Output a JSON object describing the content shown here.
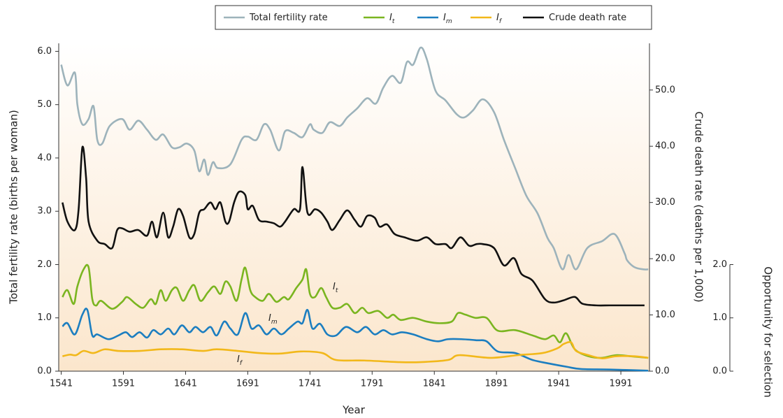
{
  "chart_data": {
    "type": "line",
    "xlabel": "Year",
    "ylabel": "Total fertility rate (births per woman)",
    "y2label": "Crude death rate (deaths per 1,000)",
    "y3label": "Opportunity for selection",
    "xlim": [
      1539,
      2014
    ],
    "xticks": [
      1541,
      1591,
      1641,
      1691,
      1741,
      1791,
      1841,
      1891,
      1941,
      1991
    ],
    "ylim": [
      0,
      6.15
    ],
    "yticks": [
      {
        "value": 0,
        "label": "0.0"
      },
      {
        "value": 1,
        "label": "1.0"
      },
      {
        "value": 2,
        "label": "2.0"
      },
      {
        "value": 3,
        "label": "3.0"
      },
      {
        "value": 4,
        "label": "4.0"
      },
      {
        "value": 5,
        "label": "5.0"
      },
      {
        "value": 6,
        "label": "6.0"
      }
    ],
    "y2lim": [
      0,
      58.3
    ],
    "y2ticks": [
      {
        "value": 0,
        "label": "0.0"
      },
      {
        "value": 10,
        "label": "10.0"
      },
      {
        "value": 20,
        "label": "20.0"
      },
      {
        "value": 30,
        "label": "30.0"
      },
      {
        "value": 40,
        "label": "40.0"
      },
      {
        "value": 50,
        "label": "50.0"
      }
    ],
    "y3lim": [
      0,
      2
    ],
    "y3ticks": [
      {
        "value": 0,
        "label": "0.0"
      },
      {
        "value": 1,
        "label": "1.0"
      },
      {
        "value": 2,
        "label": "2.0"
      }
    ],
    "series": [
      {
        "name": "Total fertility rate",
        "color": "#9db3bb",
        "x": [
          1541,
          1546,
          1552,
          1554,
          1558,
          1563,
          1567,
          1570,
          1574,
          1580,
          1590,
          1596,
          1603,
          1610,
          1617,
          1623,
          1630,
          1636,
          1642,
          1648,
          1652,
          1656,
          1659,
          1663,
          1667,
          1677,
          1686,
          1691,
          1698,
          1704,
          1709,
          1716,
          1721,
          1728,
          1735,
          1741,
          1744,
          1751,
          1757,
          1765,
          1771,
          1779,
          1787,
          1794,
          1800,
          1807,
          1814,
          1819,
          1824,
          1830,
          1835,
          1842,
          1850,
          1859,
          1865,
          1872,
          1880,
          1889,
          1897,
          1906,
          1915,
          1924,
          1932,
          1937,
          1944,
          1949,
          1955,
          1964,
          1976,
          1986,
          1994,
          1996,
          2002,
          2009,
          2013
        ],
        "values": [
          5.75,
          5.36,
          5.6,
          5.0,
          4.63,
          4.73,
          4.97,
          4.34,
          4.27,
          4.6,
          4.73,
          4.53,
          4.7,
          4.53,
          4.34,
          4.44,
          4.2,
          4.2,
          4.27,
          4.14,
          3.75,
          3.97,
          3.68,
          3.92,
          3.81,
          3.88,
          4.34,
          4.4,
          4.34,
          4.63,
          4.53,
          4.14,
          4.5,
          4.47,
          4.39,
          4.63,
          4.53,
          4.47,
          4.67,
          4.6,
          4.76,
          4.93,
          5.12,
          5.02,
          5.32,
          5.54,
          5.41,
          5.8,
          5.75,
          6.07,
          5.85,
          5.26,
          5.08,
          4.82,
          4.76,
          4.89,
          5.1,
          4.86,
          4.34,
          3.81,
          3.29,
          2.96,
          2.5,
          2.31,
          1.91,
          2.18,
          1.91,
          2.31,
          2.44,
          2.57,
          2.21,
          2.08,
          1.95,
          1.91,
          1.91
        ]
      },
      {
        "name": "I",
        "name_sub": "t",
        "color": "#7ab520",
        "x": [
          1542,
          1546,
          1551,
          1554,
          1559,
          1563,
          1566,
          1569,
          1573,
          1582,
          1590,
          1594,
          1601,
          1607,
          1613,
          1617,
          1621,
          1625,
          1630,
          1634,
          1639,
          1644,
          1648,
          1653,
          1659,
          1664,
          1669,
          1673,
          1677,
          1682,
          1686,
          1689,
          1693,
          1697,
          1703,
          1708,
          1714,
          1720,
          1724,
          1730,
          1735,
          1738,
          1741,
          1745,
          1750,
          1754,
          1759,
          1765,
          1771,
          1777,
          1783,
          1788,
          1796,
          1803,
          1808,
          1814,
          1824,
          1835,
          1845,
          1855,
          1860,
          1866,
          1874,
          1883,
          1892,
          1906,
          1920,
          1930,
          1937,
          1942,
          1947,
          1954,
          1965,
          1976,
          1987,
          1999,
          2013
        ],
        "values": [
          1.39,
          1.52,
          1.26,
          1.59,
          1.91,
          1.95,
          1.35,
          1.23,
          1.32,
          1.17,
          1.3,
          1.39,
          1.26,
          1.19,
          1.35,
          1.26,
          1.52,
          1.32,
          1.52,
          1.56,
          1.32,
          1.52,
          1.61,
          1.32,
          1.48,
          1.59,
          1.45,
          1.68,
          1.59,
          1.32,
          1.72,
          1.94,
          1.52,
          1.39,
          1.32,
          1.45,
          1.3,
          1.39,
          1.35,
          1.56,
          1.72,
          1.91,
          1.45,
          1.39,
          1.56,
          1.39,
          1.19,
          1.19,
          1.26,
          1.09,
          1.19,
          1.09,
          1.13,
          1.0,
          1.06,
          0.96,
          1.0,
          0.93,
          0.9,
          0.93,
          1.09,
          1.06,
          1.0,
          1.0,
          0.76,
          0.77,
          0.67,
          0.6,
          0.67,
          0.54,
          0.71,
          0.41,
          0.28,
          0.25,
          0.3,
          0.28,
          0.25
        ]
      },
      {
        "name": "I",
        "name_sub": "m",
        "color": "#1c7ec0",
        "x": [
          1542,
          1546,
          1552,
          1558,
          1562,
          1566,
          1570,
          1579,
          1587,
          1593,
          1598,
          1604,
          1610,
          1615,
          1621,
          1627,
          1632,
          1638,
          1644,
          1649,
          1655,
          1661,
          1666,
          1672,
          1677,
          1683,
          1689,
          1694,
          1700,
          1706,
          1712,
          1718,
          1724,
          1731,
          1735,
          1739,
          1743,
          1749,
          1755,
          1762,
          1770,
          1779,
          1786,
          1793,
          1800,
          1807,
          1815,
          1824,
          1835,
          1844,
          1852,
          1863,
          1875,
          1883,
          1892,
          1906,
          1920,
          1934,
          1948,
          1959,
          1982,
          2013
        ],
        "values": [
          0.84,
          0.9,
          0.69,
          1.06,
          1.15,
          0.67,
          0.69,
          0.6,
          0.67,
          0.73,
          0.64,
          0.73,
          0.63,
          0.77,
          0.69,
          0.8,
          0.69,
          0.86,
          0.73,
          0.83,
          0.73,
          0.83,
          0.67,
          0.93,
          0.8,
          0.69,
          1.09,
          0.8,
          0.86,
          0.69,
          0.8,
          0.69,
          0.8,
          0.93,
          0.9,
          1.15,
          0.8,
          0.89,
          0.69,
          0.67,
          0.83,
          0.73,
          0.83,
          0.69,
          0.77,
          0.69,
          0.73,
          0.69,
          0.6,
          0.56,
          0.6,
          0.6,
          0.58,
          0.56,
          0.37,
          0.34,
          0.21,
          0.14,
          0.08,
          0.04,
          0.03,
          0.01
        ]
      },
      {
        "name": "I",
        "name_sub": "f",
        "color": "#f2b81a",
        "x": [
          1542,
          1548,
          1553,
          1559,
          1567,
          1576,
          1587,
          1604,
          1621,
          1638,
          1655,
          1666,
          1683,
          1700,
          1717,
          1734,
          1751,
          1762,
          1785,
          1813,
          1830,
          1852,
          1861,
          1886,
          1908,
          1928,
          1940,
          1945,
          1951,
          1955,
          1965,
          1976,
          1987,
          2002,
          2013
        ],
        "values": [
          0.28,
          0.31,
          0.3,
          0.38,
          0.34,
          0.41,
          0.38,
          0.38,
          0.41,
          0.41,
          0.38,
          0.41,
          0.38,
          0.34,
          0.33,
          0.37,
          0.34,
          0.21,
          0.2,
          0.17,
          0.17,
          0.21,
          0.3,
          0.25,
          0.3,
          0.34,
          0.43,
          0.51,
          0.54,
          0.38,
          0.3,
          0.24,
          0.28,
          0.28,
          0.25
        ]
      },
      {
        "name": "Crude death rate",
        "color": "#111111",
        "axis": "y2",
        "x": [
          1542,
          1546,
          1552,
          1555,
          1558,
          1561,
          1563,
          1570,
          1576,
          1582,
          1586,
          1590,
          1596,
          1603,
          1610,
          1614,
          1618,
          1623,
          1627,
          1631,
          1635,
          1639,
          1644,
          1648,
          1652,
          1656,
          1661,
          1665,
          1669,
          1673,
          1676,
          1680,
          1684,
          1689,
          1691,
          1695,
          1700,
          1706,
          1712,
          1717,
          1721,
          1728,
          1733,
          1735,
          1739,
          1745,
          1750,
          1755,
          1759,
          1765,
          1771,
          1777,
          1782,
          1787,
          1793,
          1797,
          1803,
          1809,
          1817,
          1827,
          1835,
          1842,
          1850,
          1855,
          1862,
          1869,
          1875,
          1880,
          1889,
          1897,
          1905,
          1911,
          1920,
          1930,
          1937,
          1945,
          1954,
          1960,
          1971,
          1982,
          1993,
          2010
        ],
        "values": [
          30.0,
          26.6,
          25.1,
          28.8,
          39.8,
          34.4,
          26.6,
          23.2,
          22.6,
          21.9,
          25.1,
          25.4,
          24.8,
          25.1,
          24.1,
          26.6,
          23.8,
          28.2,
          23.8,
          25.7,
          28.8,
          27.6,
          23.8,
          24.4,
          28.2,
          28.8,
          30.0,
          28.8,
          30.0,
          26.6,
          26.6,
          30.0,
          31.9,
          31.3,
          28.8,
          29.4,
          26.9,
          26.6,
          26.3,
          25.7,
          26.6,
          28.8,
          28.8,
          36.3,
          28.2,
          28.8,
          28.2,
          26.6,
          25.1,
          26.9,
          28.6,
          26.9,
          25.7,
          27.6,
          27.3,
          25.7,
          26.1,
          24.4,
          23.8,
          23.2,
          23.8,
          22.6,
          22.6,
          21.9,
          23.8,
          22.3,
          22.6,
          22.6,
          21.9,
          18.8,
          20.1,
          17.3,
          16.1,
          12.8,
          12.2,
          12.6,
          13.2,
          12.0,
          11.7,
          11.7,
          11.7,
          11.7
        ]
      }
    ],
    "annotations": [
      {
        "text": "I",
        "sub": "t"
      },
      {
        "text": "I",
        "sub": "m"
      },
      {
        "text": "I",
        "sub": "f"
      }
    ]
  }
}
